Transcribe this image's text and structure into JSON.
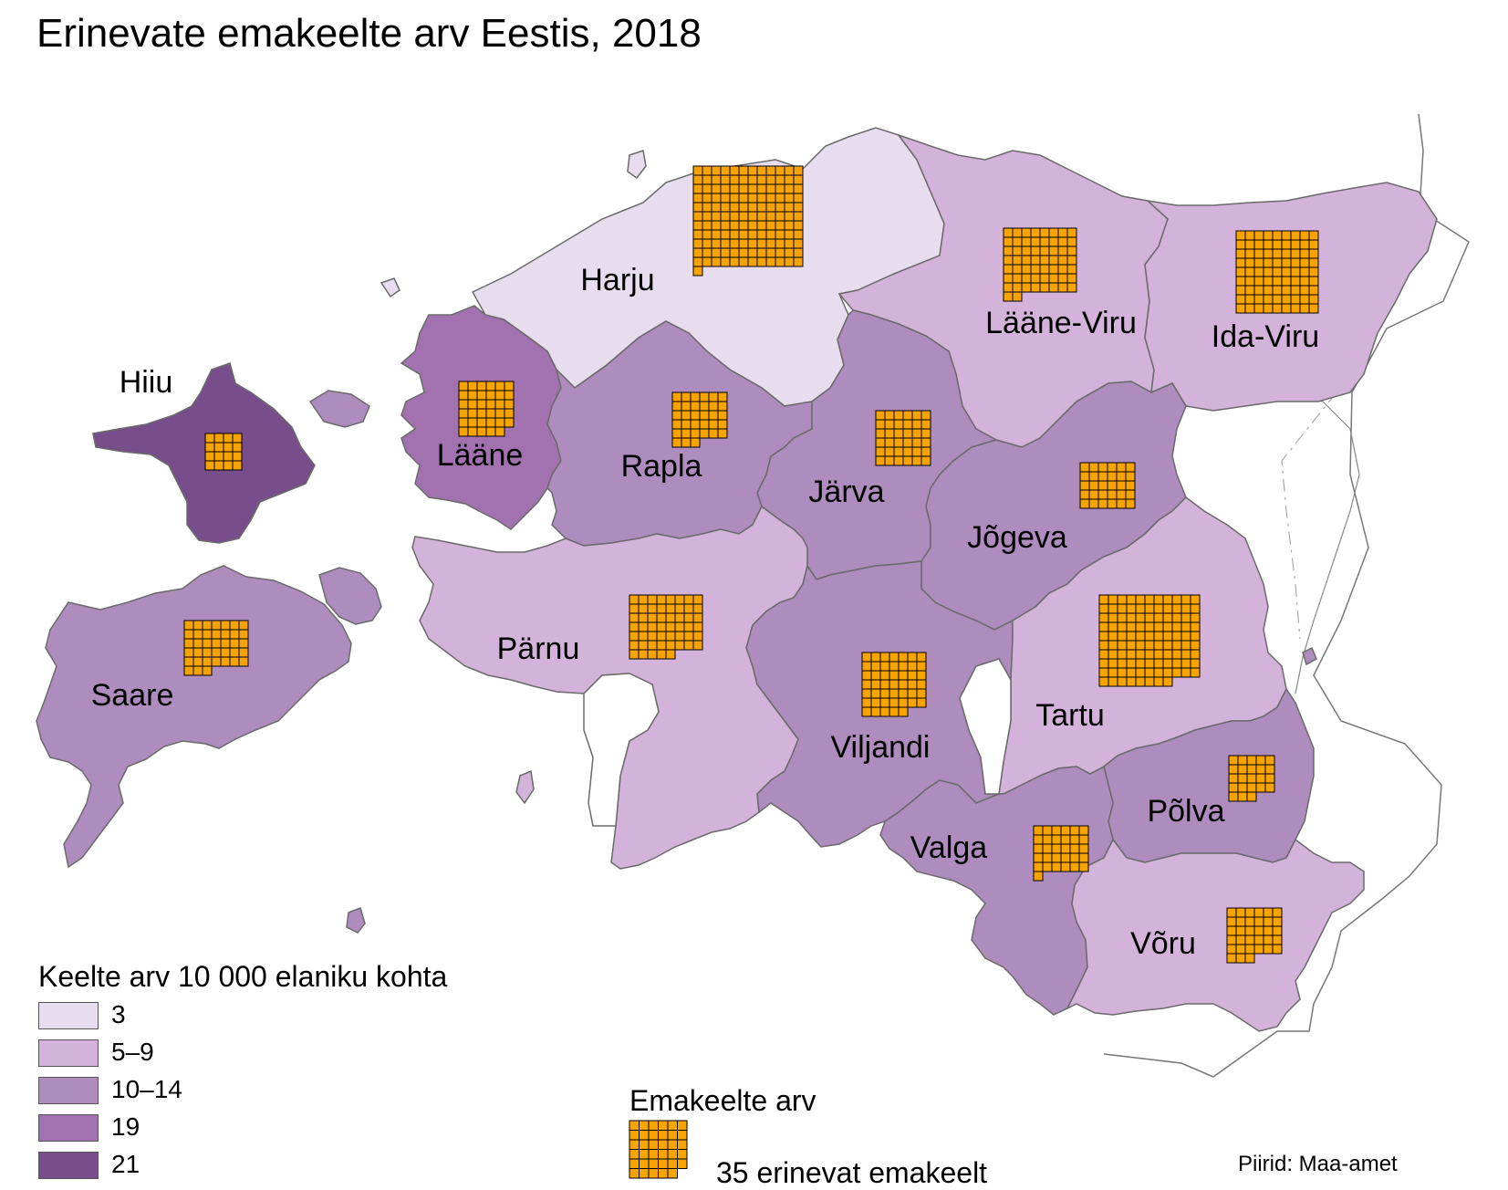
{
  "title": "Erinevate emakeelte arv Eestis, 2018",
  "colors": {
    "class_3": "#e8ddef",
    "class_5_9": "#d4b3da",
    "class_10_14": "#ae8cbe",
    "class_19": "#a272b0",
    "class_21": "#774d8b",
    "symbol_fill": "#f7a300",
    "symbol_stroke": "#000000"
  },
  "regions": [
    {
      "name": "Harju",
      "class": "class_3",
      "languages": 133
    },
    {
      "name": "Lääne-Viru",
      "class": "class_5_9",
      "languages": 58
    },
    {
      "name": "Ida-Viru",
      "class": "class_5_9",
      "languages": 81
    },
    {
      "name": "Hiiu",
      "class": "class_21",
      "languages": 16
    },
    {
      "name": "Lääne",
      "class": "class_19",
      "languages": 35
    },
    {
      "name": "Rapla",
      "class": "class_10_14",
      "languages": 33
    },
    {
      "name": "Järva",
      "class": "class_10_14",
      "languages": 36
    },
    {
      "name": "Jõgeva",
      "class": "class_10_14",
      "languages": 30
    },
    {
      "name": "Saare",
      "class": "class_10_14",
      "languages": 38
    },
    {
      "name": "Pärnu",
      "class": "class_5_9",
      "languages": 53
    },
    {
      "name": "Viljandi",
      "class": "class_10_14",
      "languages": 47
    },
    {
      "name": "Tartu",
      "class": "class_5_9",
      "languages": 107
    },
    {
      "name": "Põlva",
      "class": "class_10_14",
      "languages": 23
    },
    {
      "name": "Valga",
      "class": "class_10_14",
      "languages": 31
    },
    {
      "name": "Võru",
      "class": "class_5_9",
      "languages": 33
    }
  ],
  "legend": {
    "title": "Keelte arv 10 000 elaniku kohta",
    "items": [
      {
        "label": "3",
        "class": "class_3"
      },
      {
        "label": "5–9",
        "class": "class_5_9"
      },
      {
        "label": "10–14",
        "class": "class_10_14"
      },
      {
        "label": "19",
        "class": "class_19"
      },
      {
        "label": "21",
        "class": "class_21"
      }
    ]
  },
  "symbol_legend": {
    "title": "Emakeelte arv",
    "label": "35 erinevat emakeelt",
    "value": 35
  },
  "source": "Piirid: Maa-amet"
}
